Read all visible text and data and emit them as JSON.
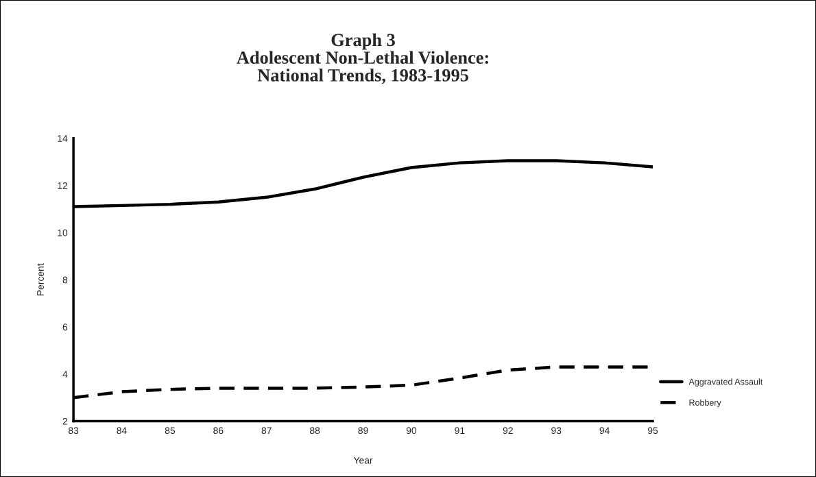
{
  "chart_data": {
    "type": "line",
    "title": "Graph 3\nAdolescent Non-Lethal Violence:\nNational Trends, 1983-1995",
    "xlabel": "Year",
    "ylabel": "Percent",
    "x": [
      83,
      84,
      85,
      86,
      87,
      88,
      89,
      90,
      91,
      92,
      93,
      94,
      95
    ],
    "xlim": [
      83,
      95
    ],
    "xticks": [
      83,
      84,
      85,
      86,
      87,
      88,
      89,
      90,
      91,
      92,
      93,
      94,
      95
    ],
    "ylim": [
      2,
      14
    ],
    "yticks": [
      2,
      4,
      6,
      8,
      10,
      12,
      14
    ],
    "series": [
      {
        "name": "Aggravated Assault",
        "color": "#000000",
        "line_style": "solid",
        "values": [
          11.1,
          11.15,
          11.2,
          11.3,
          11.5,
          11.85,
          12.35,
          12.76,
          12.96,
          13.05,
          13.05,
          12.96,
          12.79
        ]
      },
      {
        "name": "Robbery",
        "color": "#000000",
        "line_style": "dashed",
        "values": [
          3.0,
          3.25,
          3.35,
          3.4,
          3.4,
          3.4,
          3.45,
          3.53,
          3.83,
          4.17,
          4.3,
          4.3,
          4.3
        ]
      }
    ],
    "grid": false,
    "legend": "right"
  }
}
